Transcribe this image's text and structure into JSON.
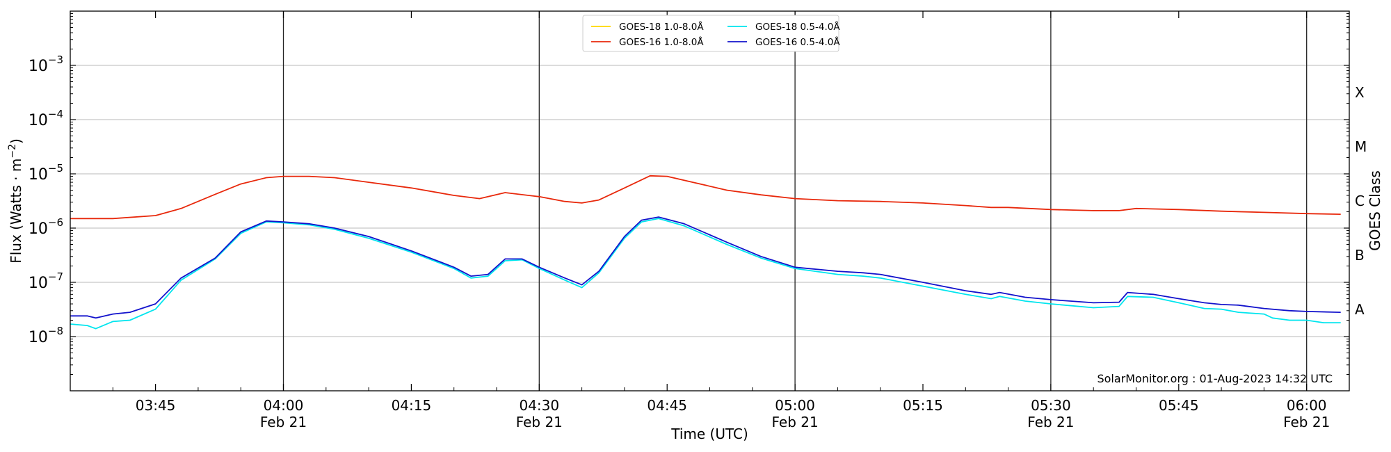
{
  "chart_data": {
    "type": "line",
    "title": "",
    "xlabel": "Time (UTC)",
    "ylabel_main": "Flux (Watts · m",
    "ylabel_sup": "−2",
    "ylabel_close": ")",
    "ylabel_right": "GOES Class",
    "yscale": "log",
    "ylim": [
      1e-09,
      0.01
    ],
    "xlim": [
      "03:35",
      "06:05"
    ],
    "grid": "horizontal at each decade",
    "legend_position": "top-center",
    "watermark": "SolarMonitor.org : 01-Aug-2023 14:32 UTC",
    "y_ticks": [
      {
        "value": 1e-08,
        "mantissa": "10",
        "exp": "−8"
      },
      {
        "value": 1e-07,
        "mantissa": "10",
        "exp": "−7"
      },
      {
        "value": 1e-06,
        "mantissa": "10",
        "exp": "−6"
      },
      {
        "value": 1e-05,
        "mantissa": "10",
        "exp": "−5"
      },
      {
        "value": 0.0001,
        "mantissa": "10",
        "exp": "−4"
      },
      {
        "value": 0.001,
        "mantissa": "10",
        "exp": "−3"
      }
    ],
    "x_ticks": [
      {
        "time": "03:45",
        "label": "03:45",
        "date": ""
      },
      {
        "time": "04:00",
        "label": "04:00",
        "date": "Feb 21"
      },
      {
        "time": "04:15",
        "label": "04:15",
        "date": ""
      },
      {
        "time": "04:30",
        "label": "04:30",
        "date": "Feb 21"
      },
      {
        "time": "04:45",
        "label": "04:45",
        "date": ""
      },
      {
        "time": "05:00",
        "label": "05:00",
        "date": "Feb 21"
      },
      {
        "time": "05:15",
        "label": "05:15",
        "date": ""
      },
      {
        "time": "05:30",
        "label": "05:30",
        "date": "Feb 21"
      },
      {
        "time": "05:45",
        "label": "05:45",
        "date": ""
      },
      {
        "time": "06:00",
        "label": "06:00",
        "date": "Feb 21"
      }
    ],
    "vertical_lines": [
      "04:00",
      "04:30",
      "05:00",
      "05:30",
      "06:00"
    ],
    "goes_classes": [
      {
        "label": "A",
        "value": 1e-08
      },
      {
        "label": "B",
        "value": 1e-07
      },
      {
        "label": "C",
        "value": 1e-06
      },
      {
        "label": "M",
        "value": 1e-05
      },
      {
        "label": "X",
        "value": 0.0001
      }
    ],
    "series": [
      {
        "name": "GOES-18 1.0-8.0Å",
        "color": "#ffd700",
        "x": [],
        "values": []
      },
      {
        "name": "GOES-16 1.0-8.0Å",
        "color": "#e8280b",
        "x": [
          "03:35",
          "03:40",
          "03:45",
          "03:48",
          "03:52",
          "03:55",
          "03:58",
          "04:00",
          "04:03",
          "04:06",
          "04:10",
          "04:15",
          "04:20",
          "04:23",
          "04:26",
          "04:30",
          "04:33",
          "04:35",
          "04:37",
          "04:40",
          "04:43",
          "04:45",
          "04:48",
          "04:52",
          "04:56",
          "05:00",
          "05:05",
          "05:10",
          "05:15",
          "05:20",
          "05:23",
          "05:25",
          "05:30",
          "05:35",
          "05:38",
          "05:40",
          "05:45",
          "05:50",
          "05:55",
          "06:00",
          "06:04"
        ],
        "values": [
          1.5e-06,
          1.5e-06,
          1.7e-06,
          2.3e-06,
          4.2e-06,
          6.5e-06,
          8.5e-06,
          9e-06,
          9e-06,
          8.5e-06,
          7e-06,
          5.5e-06,
          4e-06,
          3.5e-06,
          4.5e-06,
          3.8e-06,
          3.1e-06,
          2.9e-06,
          3.3e-06,
          5.5e-06,
          9.2e-06,
          9e-06,
          7e-06,
          5e-06,
          4.1e-06,
          3.5e-06,
          3.2e-06,
          3.1e-06,
          2.9e-06,
          2.6e-06,
          2.4e-06,
          2.4e-06,
          2.2e-06,
          2.1e-06,
          2.1e-06,
          2.3e-06,
          2.2e-06,
          2.05e-06,
          1.95e-06,
          1.85e-06,
          1.8e-06
        ]
      },
      {
        "name": "GOES-18 0.5-4.0Å",
        "color": "#00e5ee",
        "x": [
          "03:35",
          "03:37",
          "03:38",
          "03:40",
          "03:42",
          "03:45",
          "03:48",
          "03:52",
          "03:55",
          "03:58",
          "04:00",
          "04:03",
          "04:06",
          "04:10",
          "04:15",
          "04:20",
          "04:22",
          "04:24",
          "04:26",
          "04:28",
          "04:30",
          "04:33",
          "04:35",
          "04:37",
          "04:40",
          "04:42",
          "04:44",
          "04:47",
          "04:52",
          "04:56",
          "05:00",
          "05:05",
          "05:08",
          "05:10",
          "05:15",
          "05:20",
          "05:23",
          "05:24",
          "05:27",
          "05:30",
          "05:35",
          "05:38",
          "05:39",
          "05:42",
          "05:45",
          "05:48",
          "05:50",
          "05:52",
          "05:55",
          "05:56",
          "05:58",
          "06:00",
          "06:02",
          "06:04"
        ],
        "values": [
          1.7e-08,
          1.6e-08,
          1.4e-08,
          1.9e-08,
          2e-08,
          3.2e-08,
          1.1e-07,
          2.7e-07,
          8e-07,
          1.3e-06,
          1.25e-06,
          1.15e-06,
          9.5e-07,
          6.5e-07,
          3.6e-07,
          1.8e-07,
          1.2e-07,
          1.3e-07,
          2.5e-07,
          2.6e-07,
          1.8e-07,
          1.1e-07,
          8e-08,
          1.5e-07,
          6.5e-07,
          1.3e-06,
          1.5e-06,
          1.1e-06,
          5e-07,
          2.8e-07,
          1.8e-07,
          1.4e-07,
          1.3e-07,
          1.2e-07,
          8.5e-08,
          6e-08,
          5e-08,
          5.5e-08,
          4.5e-08,
          4e-08,
          3.4e-08,
          3.6e-08,
          5.5e-08,
          5.3e-08,
          4.2e-08,
          3.3e-08,
          3.2e-08,
          2.8e-08,
          2.6e-08,
          2.2e-08,
          2e-08,
          2e-08,
          1.8e-08,
          1.8e-08
        ]
      },
      {
        "name": "GOES-16 0.5-4.0Å",
        "color": "#1212cc",
        "x": [
          "03:35",
          "03:37",
          "03:38",
          "03:40",
          "03:42",
          "03:45",
          "03:48",
          "03:52",
          "03:55",
          "03:58",
          "04:00",
          "04:03",
          "04:06",
          "04:10",
          "04:15",
          "04:20",
          "04:22",
          "04:24",
          "04:26",
          "04:28",
          "04:30",
          "04:33",
          "04:35",
          "04:37",
          "04:40",
          "04:42",
          "04:44",
          "04:47",
          "04:52",
          "04:56",
          "05:00",
          "05:05",
          "05:08",
          "05:10",
          "05:15",
          "05:20",
          "05:23",
          "05:24",
          "05:27",
          "05:30",
          "05:35",
          "05:38",
          "05:39",
          "05:42",
          "05:45",
          "05:48",
          "05:50",
          "05:52",
          "05:55",
          "05:58",
          "06:00",
          "06:04"
        ],
        "values": [
          2.4e-08,
          2.4e-08,
          2.2e-08,
          2.6e-08,
          2.8e-08,
          4e-08,
          1.2e-07,
          2.8e-07,
          8.5e-07,
          1.35e-06,
          1.3e-06,
          1.2e-06,
          1e-06,
          7e-07,
          3.8e-07,
          1.9e-07,
          1.3e-07,
          1.4e-07,
          2.7e-07,
          2.7e-07,
          1.9e-07,
          1.2e-07,
          9e-08,
          1.6e-07,
          7e-07,
          1.4e-06,
          1.6e-06,
          1.2e-06,
          5.5e-07,
          3e-07,
          1.9e-07,
          1.6e-07,
          1.5e-07,
          1.4e-07,
          1e-07,
          7e-08,
          6e-08,
          6.5e-08,
          5.3e-08,
          4.8e-08,
          4.2e-08,
          4.3e-08,
          6.5e-08,
          6e-08,
          5e-08,
          4.2e-08,
          3.9e-08,
          3.8e-08,
          3.3e-08,
          3e-08,
          2.9e-08,
          2.8e-08
        ]
      }
    ]
  }
}
